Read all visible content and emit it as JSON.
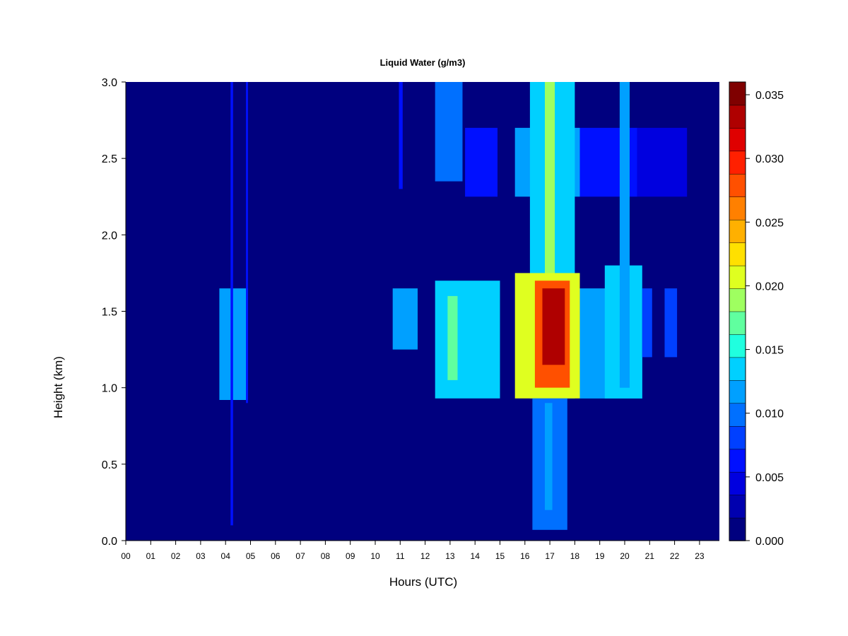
{
  "chart_data": {
    "type": "heatmap",
    "title": "Liquid Water (g/m3)",
    "xlabel": "Hours (UTC)",
    "ylabel": "Height (km)",
    "xlim": [
      0,
      23.8
    ],
    "ylim": [
      0,
      3.0
    ],
    "x_ticks": [
      "00",
      "01",
      "02",
      "03",
      "04",
      "05",
      "06",
      "07",
      "08",
      "09",
      "10",
      "11",
      "12",
      "13",
      "14",
      "15",
      "16",
      "17",
      "18",
      "19",
      "20",
      "21",
      "22",
      "23"
    ],
    "y_ticks": [
      "0.0",
      "0.5",
      "1.0",
      "1.5",
      "2.0",
      "2.5",
      "3.0"
    ],
    "colorbar": {
      "min": 0.0,
      "max": 0.036,
      "ticks": [
        "0.000",
        "0.005",
        "0.010",
        "0.015",
        "0.020",
        "0.025",
        "0.030",
        "0.035"
      ],
      "colors": [
        "#00007f",
        "#0000af",
        "#0000df",
        "#0010ff",
        "#0040ff",
        "#0070ff",
        "#00a0ff",
        "#00d0ff",
        "#20ffdf",
        "#60ff9f",
        "#9fff60",
        "#dfff20",
        "#ffe000",
        "#ffb000",
        "#ff8000",
        "#ff5000",
        "#ff2000",
        "#df0000",
        "#af0000",
        "#7f0000"
      ]
    },
    "regions": [
      {
        "x0": 3.75,
        "x1": 4.9,
        "y0": 0.92,
        "y1": 1.65,
        "value": 0.012
      },
      {
        "x0": 4.2,
        "x1": 4.3,
        "y0": 0.1,
        "y1": 3.0,
        "value": 0.006
      },
      {
        "x0": 4.82,
        "x1": 4.9,
        "y0": 0.9,
        "y1": 3.0,
        "value": 0.006
      },
      {
        "x0": 10.7,
        "x1": 11.7,
        "y0": 1.25,
        "y1": 1.65,
        "value": 0.012
      },
      {
        "x0": 10.95,
        "x1": 11.1,
        "y0": 2.3,
        "y1": 3.0,
        "value": 0.007
      },
      {
        "x0": 12.4,
        "x1": 13.5,
        "y0": 2.35,
        "y1": 3.0,
        "value": 0.01
      },
      {
        "x0": 13.6,
        "x1": 14.9,
        "y0": 2.25,
        "y1": 2.7,
        "value": 0.007
      },
      {
        "x0": 12.4,
        "x1": 15.0,
        "y0": 0.93,
        "y1": 1.7,
        "value": 0.014
      },
      {
        "x0": 12.9,
        "x1": 13.3,
        "y0": 1.05,
        "y1": 1.6,
        "value": 0.017
      },
      {
        "x0": 15.6,
        "x1": 18.2,
        "y0": 2.25,
        "y1": 2.7,
        "value": 0.011
      },
      {
        "x0": 16.2,
        "x1": 18.0,
        "y0": 0.93,
        "y1": 3.0,
        "value": 0.014
      },
      {
        "x0": 16.8,
        "x1": 17.2,
        "y0": 1.7,
        "y1": 3.0,
        "value": 0.019
      },
      {
        "x0": 15.6,
        "x1": 18.2,
        "y0": 0.93,
        "y1": 1.75,
        "value": 0.02
      },
      {
        "x0": 16.4,
        "x1": 17.8,
        "y0": 1.0,
        "y1": 1.7,
        "value": 0.027
      },
      {
        "x0": 16.7,
        "x1": 17.6,
        "y0": 1.15,
        "y1": 1.65,
        "value": 0.033
      },
      {
        "x0": 16.3,
        "x1": 17.7,
        "y0": 0.07,
        "y1": 0.93,
        "value": 0.009
      },
      {
        "x0": 16.8,
        "x1": 17.1,
        "y0": 0.2,
        "y1": 0.9,
        "value": 0.012
      },
      {
        "x0": 18.2,
        "x1": 20.5,
        "y0": 2.25,
        "y1": 2.7,
        "value": 0.007
      },
      {
        "x0": 20.5,
        "x1": 22.5,
        "y0": 2.25,
        "y1": 2.7,
        "value": 0.004
      },
      {
        "x0": 18.2,
        "x1": 20.7,
        "y0": 0.93,
        "y1": 1.65,
        "value": 0.012
      },
      {
        "x0": 19.2,
        "x1": 20.7,
        "y0": 0.93,
        "y1": 1.8,
        "value": 0.014
      },
      {
        "x0": 19.8,
        "x1": 20.2,
        "y0": 1.0,
        "y1": 3.0,
        "value": 0.012
      },
      {
        "x0": 20.7,
        "x1": 21.1,
        "y0": 1.2,
        "y1": 1.65,
        "value": 0.008
      },
      {
        "x0": 21.6,
        "x1": 22.1,
        "y0": 1.2,
        "y1": 1.65,
        "value": 0.008
      }
    ]
  }
}
